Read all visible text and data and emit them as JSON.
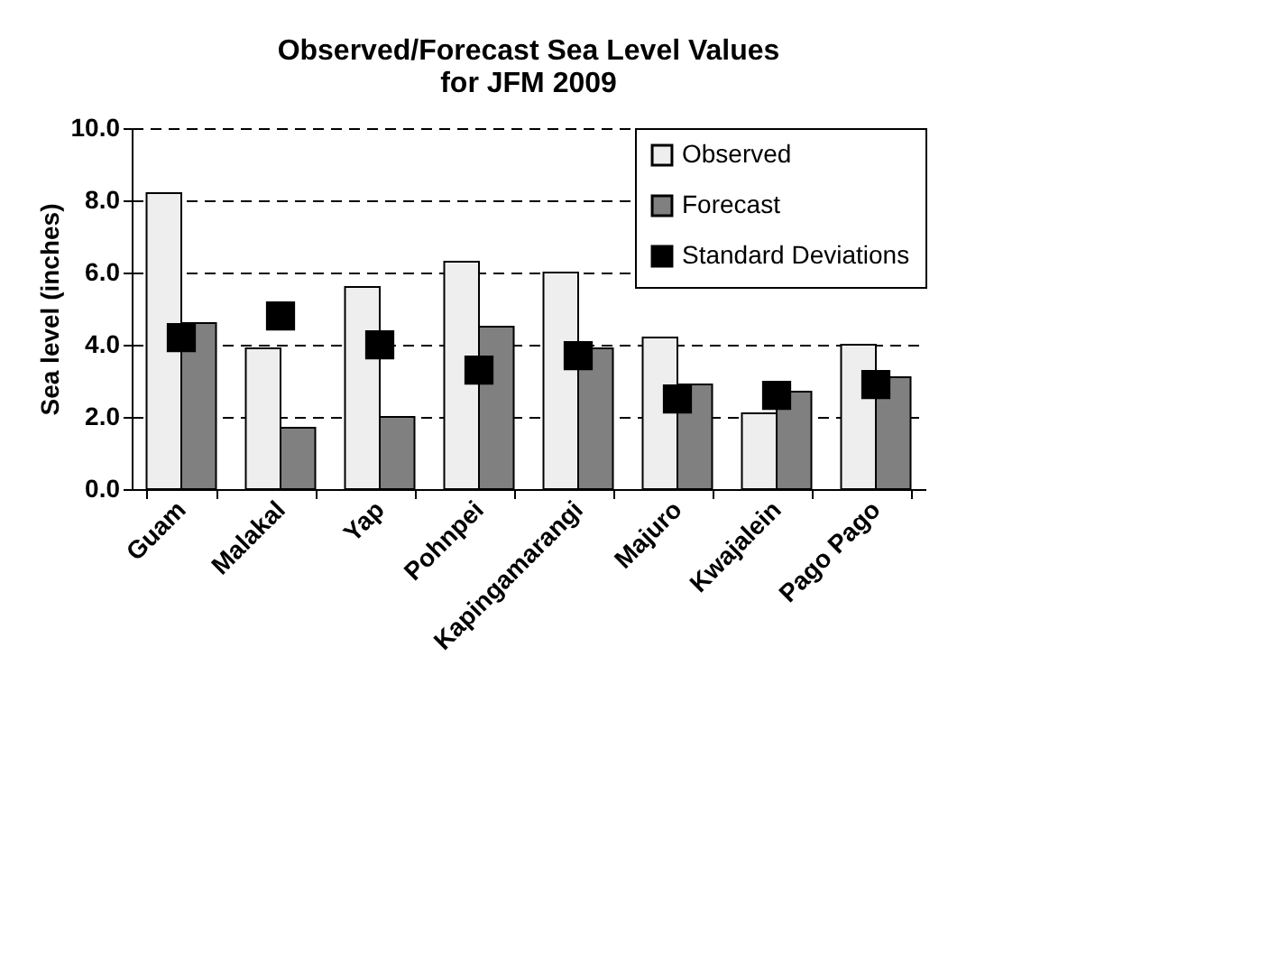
{
  "chart_data": {
    "type": "bar",
    "title": "Observed/Forecast Sea Level Values for JFM 2009",
    "ylabel": "Sea level (inches)",
    "categories": [
      "Guam",
      "Malakal",
      "Yap",
      "Pohnpei",
      "Kapingamarangi",
      "Majuro",
      "Kwajalein",
      "Pago Pago"
    ],
    "series": [
      {
        "name": "Observed",
        "color": "#eeeeee",
        "values": [
          8.2,
          3.9,
          5.6,
          6.3,
          6.0,
          4.2,
          2.1,
          4.0
        ]
      },
      {
        "name": "Forecast",
        "color": "#808080",
        "values": [
          4.6,
          1.7,
          2.0,
          4.5,
          3.9,
          2.9,
          2.7,
          3.1
        ]
      },
      {
        "name": "Standard Deviations",
        "type": "scatter",
        "marker": "square",
        "color": "#000000",
        "values": [
          4.2,
          4.8,
          4.0,
          3.3,
          3.7,
          2.5,
          2.6,
          2.9
        ]
      }
    ],
    "ylim": [
      0,
      10
    ],
    "yticks": [
      {
        "value": 0,
        "label": "0.0"
      },
      {
        "value": 2,
        "label": "2.0"
      },
      {
        "value": 4,
        "label": "4.0"
      },
      {
        "value": 6,
        "label": "6.0"
      },
      {
        "value": 8,
        "label": "8.0"
      },
      {
        "value": 10,
        "label": "10.0"
      }
    ],
    "grid": "y",
    "legend": "top right"
  }
}
